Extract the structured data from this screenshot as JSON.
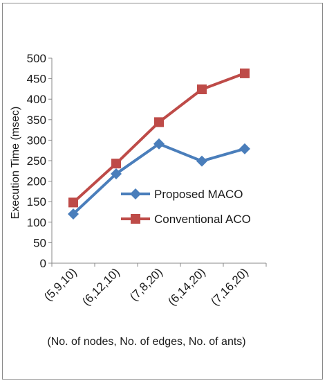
{
  "chart_data": {
    "type": "line",
    "categories": [
      "(5,9,10)",
      "(6,12,10)",
      "(7,8,20)",
      "(6,14,20)",
      "(7,16,20)"
    ],
    "series": [
      {
        "name": "Proposed MACO",
        "values": [
          120,
          218,
          291,
          249,
          279
        ],
        "color": "#4a7ebb",
        "marker": "diamond"
      },
      {
        "name": "Conventional ACO",
        "values": [
          148,
          243,
          344,
          424,
          463
        ],
        "color": "#be4b48",
        "marker": "square"
      }
    ],
    "xlabel": "(No. of nodes, No. of edges, No. of ants)",
    "ylabel": "Execution Time (msec)",
    "ylim": [
      0,
      500
    ],
    "yticks": [
      0,
      50,
      100,
      150,
      200,
      250,
      300,
      350,
      400,
      450,
      500
    ],
    "grid": false,
    "legend_position": "center-right"
  }
}
